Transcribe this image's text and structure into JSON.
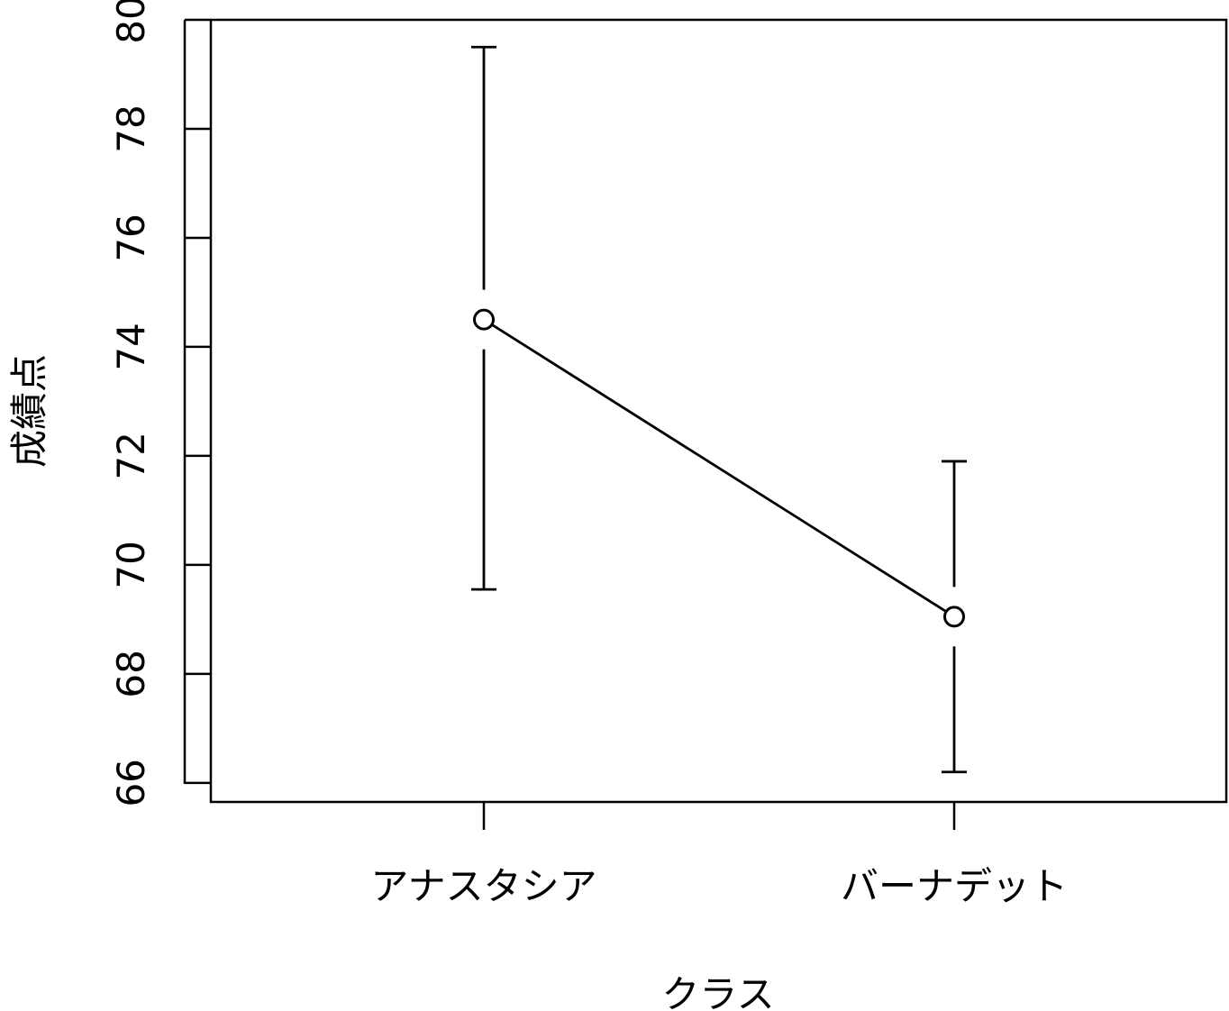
{
  "chart_data": {
    "type": "line",
    "xlabel": "クラス",
    "ylabel": "成績点",
    "categories": [
      "アナスタシア",
      "バーナデット"
    ],
    "series": [
      {
        "values": [
          74.5,
          69.05
        ],
        "error_low": [
          69.55,
          66.2
        ],
        "error_high": [
          79.5,
          71.9
        ]
      }
    ],
    "ylim": [
      65.65,
      80.0
    ],
    "yticks": [
      66,
      68,
      70,
      72,
      74,
      76,
      78,
      80
    ],
    "grid": false,
    "legend": "none",
    "colors": {
      "line": "#000000",
      "background": "#ffffff"
    }
  }
}
